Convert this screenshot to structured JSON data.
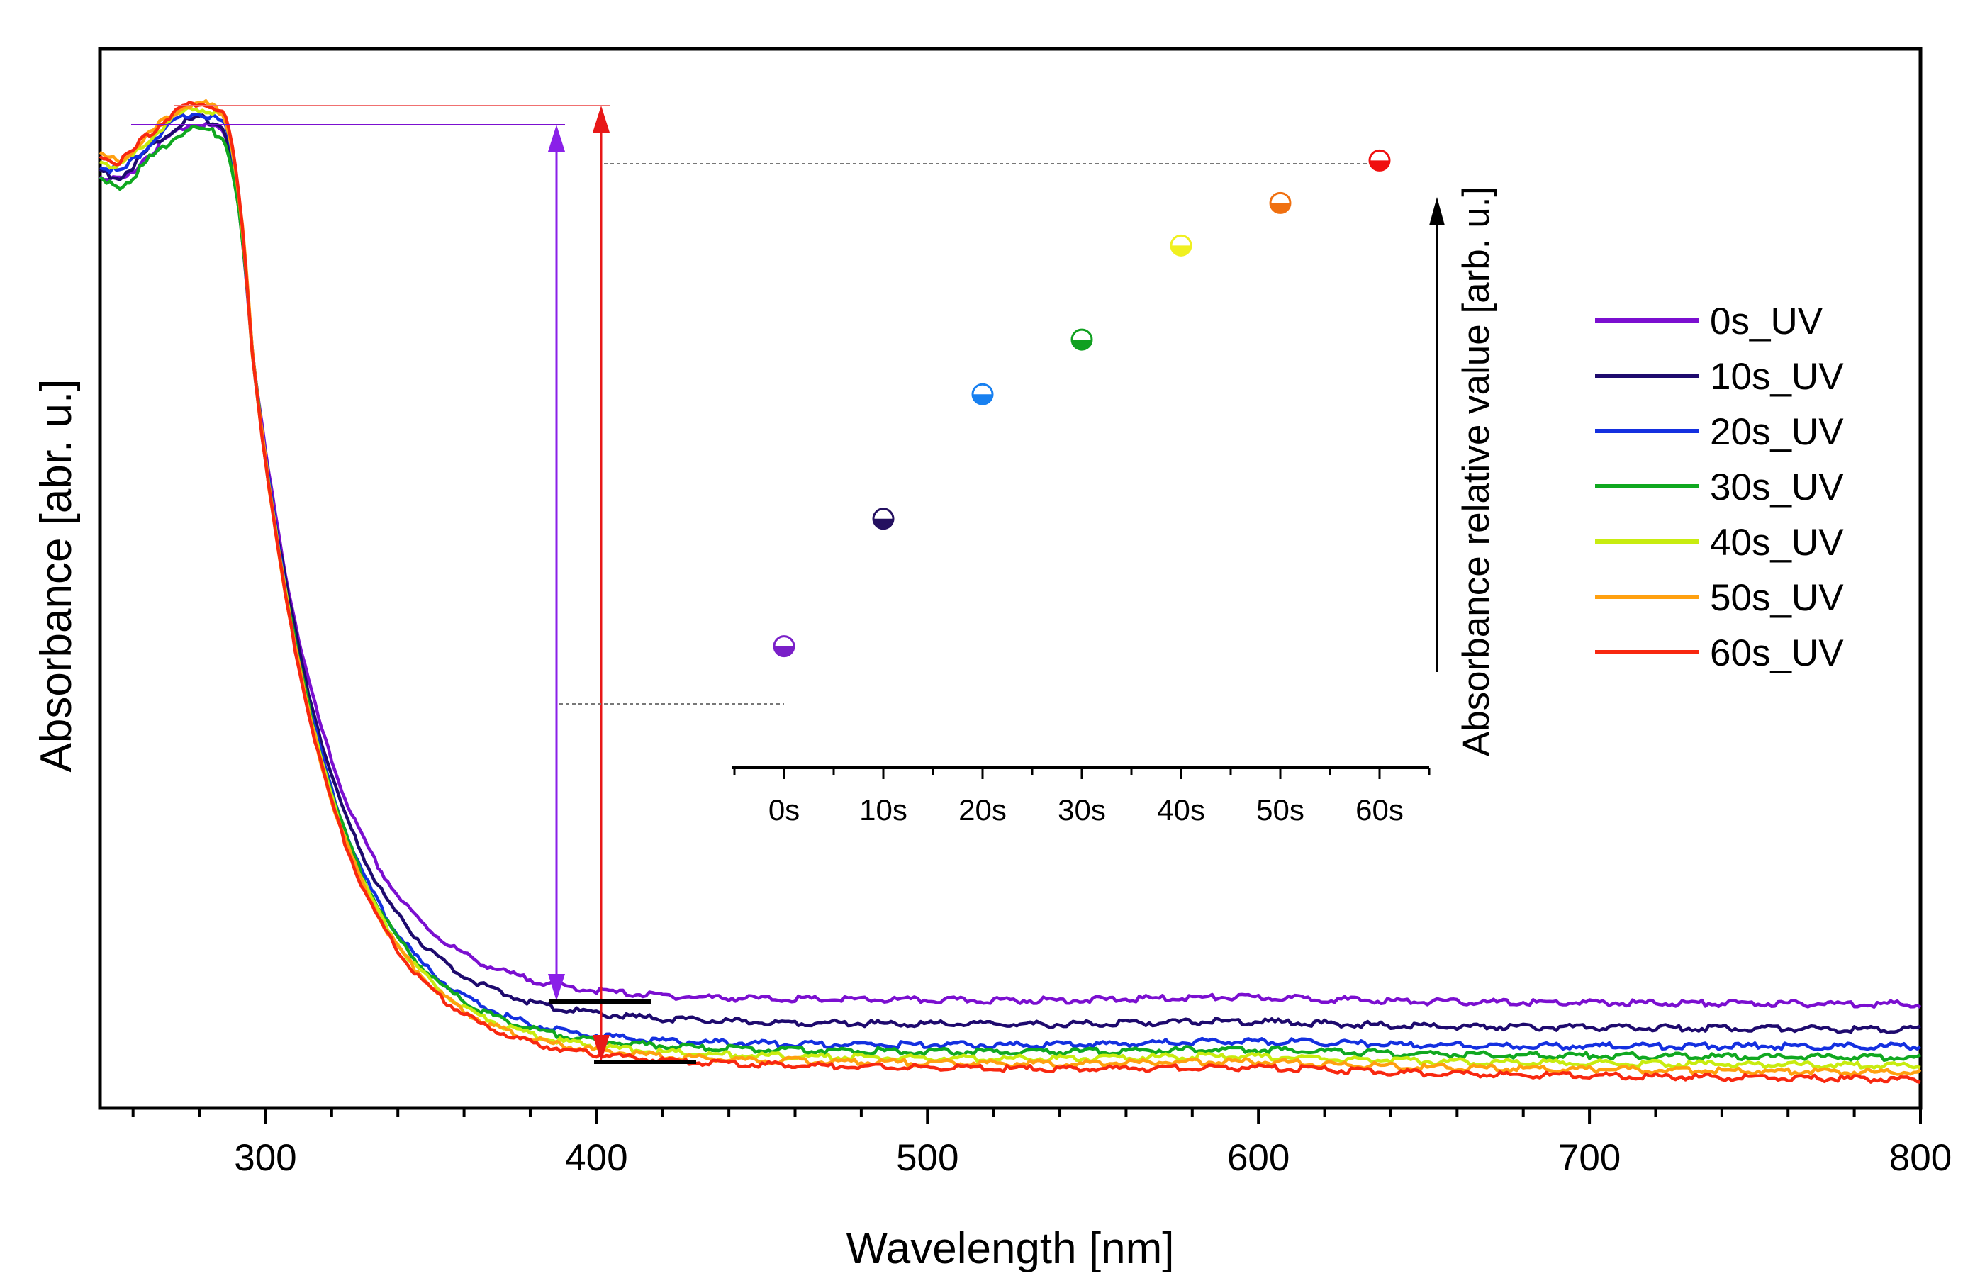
{
  "chart_data": [
    {
      "type": "line",
      "xlabel": "Wavelength [nm]",
      "ylabel": "Absorbance [abr. u.]",
      "xlim": [
        250,
        800
      ],
      "ylim": [
        0,
        1.05
      ],
      "x_ticks": [
        300,
        400,
        500,
        600,
        700,
        800
      ],
      "y_ticks": [],
      "grid": false,
      "legend_position": "right",
      "series": [
        {
          "name": "0s_UV",
          "color": "#7b0fd0",
          "plateau": 0.97,
          "tail": 0.108,
          "end": 0.103
        },
        {
          "name": "10s_UV",
          "color": "#1e0a6e",
          "plateau": 0.975,
          "tail": 0.085,
          "end": 0.078
        },
        {
          "name": "20s_UV",
          "color": "#1430e0",
          "plateau": 0.98,
          "tail": 0.063,
          "end": 0.061
        },
        {
          "name": "30s_UV",
          "color": "#10a820",
          "plateau": 0.965,
          "tail": 0.058,
          "end": 0.05
        },
        {
          "name": "40s_UV",
          "color": "#c8ec10",
          "plateau": 0.985,
          "tail": 0.052,
          "end": 0.042
        },
        {
          "name": "50s_UV",
          "color": "#ffa010",
          "plateau": 0.99,
          "tail": 0.048,
          "end": 0.035
        },
        {
          "name": "60s_UV",
          "color": "#f82810",
          "plateau": 0.99,
          "tail": 0.044,
          "end": 0.028
        }
      ]
    },
    {
      "type": "scatter",
      "ylabel": "Absorbance relative value [arb. u.]",
      "categories": [
        "0s",
        "10s",
        "20s",
        "30s",
        "40s",
        "50s",
        "60s"
      ],
      "values": [
        0.2,
        0.41,
        0.615,
        0.705,
        0.86,
        0.93,
        1.0
      ],
      "ylim": [
        0,
        1.06
      ],
      "colors": [
        "#7a1fc8",
        "#241060",
        "#1880f0",
        "#10a020",
        "#f0f020",
        "#f07010",
        "#f01010"
      ]
    }
  ]
}
